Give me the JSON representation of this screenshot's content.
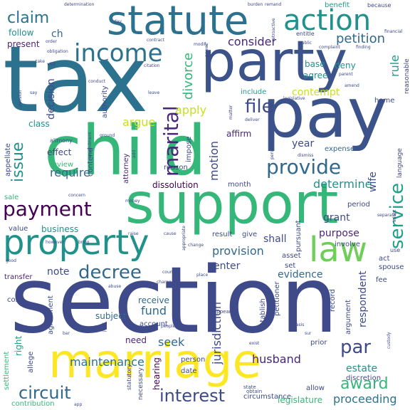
{
  "background": "#ffffff",
  "palette": {
    "purple": "#440154",
    "indigo": "#3e4a89",
    "blue": "#31688e",
    "teal": "#26828e",
    "green": "#1f9e89",
    "mint": "#35b779",
    "lime": "#6ece58",
    "yellow": "#c8e020"
  },
  "words": [
    {
      "text": "section",
      "color": "#3e4a89",
      "size": 128
    },
    {
      "text": "tax",
      "color": "#2c728e",
      "size": 128
    },
    {
      "text": "child",
      "color": "#35b779",
      "size": 96
    },
    {
      "text": "support",
      "color": "#35b779",
      "size": 78
    },
    {
      "text": "party",
      "color": "#3b528b",
      "size": 78
    },
    {
      "text": "pay",
      "color": "#3b528b",
      "size": 96
    },
    {
      "text": "statute",
      "color": "#2c728e",
      "size": 56
    },
    {
      "text": "marriage",
      "color": "#fde725",
      "size": 66
    },
    {
      "text": "property",
      "color": "#21918c",
      "size": 48
    },
    {
      "text": "law",
      "color": "#6ece58",
      "size": 48
    },
    {
      "text": "action",
      "color": "#21918c",
      "size": 40
    },
    {
      "text": "income",
      "color": "#2c728e",
      "size": 34
    },
    {
      "text": "payment",
      "color": "#440154",
      "size": 28
    },
    {
      "text": "provide",
      "color": "#31688e",
      "size": 28
    },
    {
      "text": "decree",
      "color": "#31688e",
      "size": 26
    },
    {
      "text": "issue",
      "color": "#21918c",
      "size": 22
    },
    {
      "text": "marital",
      "color": "#482677",
      "size": 28
    },
    {
      "text": "file",
      "color": "#3e4a89",
      "size": 26
    },
    {
      "text": "service",
      "color": "#1f9e89",
      "size": 26
    },
    {
      "text": "interest",
      "color": "#3e4a89",
      "size": 24
    },
    {
      "text": "circuit",
      "color": "#31688e",
      "size": 24
    },
    {
      "text": "award",
      "color": "#35b779",
      "size": 22
    },
    {
      "text": "par",
      "color": "#3e4a89",
      "size": 26
    },
    {
      "text": "claim",
      "color": "#2c728e",
      "size": 22
    },
    {
      "text": "petition",
      "color": "#31688e",
      "size": 18
    },
    {
      "text": "consider",
      "color": "#482677",
      "size": 16
    },
    {
      "text": "divorce",
      "color": "#35b779",
      "size": 18
    },
    {
      "text": "determine",
      "color": "#21918c",
      "size": 16
    },
    {
      "text": "argue",
      "color": "#c8e020",
      "size": 16
    },
    {
      "text": "apply",
      "color": "#c8e020",
      "size": 16
    },
    {
      "text": "motion",
      "color": "#3e4a89",
      "size": 16
    },
    {
      "text": "contempt",
      "color": "#c8e020",
      "size": 14
    },
    {
      "text": "rule",
      "color": "#1f9e89",
      "size": 16
    },
    {
      "text": "respondent",
      "color": "#3e4a89",
      "size": 14
    },
    {
      "text": "decision",
      "color": "#3e4a89",
      "size": 14
    },
    {
      "text": "husband",
      "color": "#482677",
      "size": 16
    },
    {
      "text": "maintenance",
      "color": "#2c728e",
      "size": 16
    },
    {
      "text": "proceeding",
      "color": "#2c728e",
      "size": 16
    },
    {
      "text": "jurisdiction",
      "color": "#3e4a89",
      "size": 16
    },
    {
      "text": "provision",
      "color": "#31688e",
      "size": 16
    },
    {
      "text": "business",
      "color": "#21918c",
      "size": 12
    },
    {
      "text": "require",
      "color": "#31688e",
      "size": 16
    },
    {
      "text": "note",
      "color": "#3e4a89",
      "size": 14
    },
    {
      "text": "seek",
      "color": "#31688e",
      "size": 16
    },
    {
      "text": "fund",
      "color": "#31688e",
      "size": 16
    },
    {
      "text": "estate",
      "color": "#21918c",
      "size": 14
    },
    {
      "text": "right",
      "color": "#1f9e89",
      "size": 12
    },
    {
      "text": "evidence",
      "color": "#31688e",
      "size": 14
    },
    {
      "text": "purpose",
      "color": "#482677",
      "size": 14
    },
    {
      "text": "grant",
      "color": "#3e4a89",
      "size": 14
    },
    {
      "text": "hearing",
      "color": "#440154",
      "size": 12
    },
    {
      "text": "legislature",
      "color": "#35b779",
      "size": 12
    },
    {
      "text": "present",
      "color": "#482677",
      "size": 12
    },
    {
      "text": "follow",
      "color": "#21918c",
      "size": 12
    },
    {
      "text": "ch",
      "color": "#31688e",
      "size": 14
    },
    {
      "text": "enter",
      "color": "#3e4a89",
      "size": 14
    },
    {
      "text": "shall",
      "color": "#3e4a89",
      "size": 14
    },
    {
      "text": "wife",
      "color": "#3e4a89",
      "size": 14
    },
    {
      "text": "year",
      "color": "#3e4a89",
      "size": 14
    },
    {
      "text": "deny",
      "color": "#21918c",
      "size": 12
    },
    {
      "text": "agree",
      "color": "#21918c",
      "size": 12
    },
    {
      "text": "base",
      "color": "#21918c",
      "size": 12
    },
    {
      "text": "include",
      "color": "#1f9e89",
      "size": 10
    },
    {
      "text": "benefit",
      "color": "#1f9e89",
      "size": 10
    },
    {
      "text": "expense",
      "color": "#31688e",
      "size": 10
    },
    {
      "text": "receive",
      "color": "#31688e",
      "size": 12
    },
    {
      "text": "subject",
      "color": "#31688e",
      "size": 12
    },
    {
      "text": "account",
      "color": "#3e4a89",
      "size": 10
    },
    {
      "text": "need",
      "color": "#482677",
      "size": 12
    },
    {
      "text": "class",
      "color": "#21918c",
      "size": 12
    },
    {
      "text": "effect",
      "color": "#3e4a89",
      "size": 12
    },
    {
      "text": "affirm",
      "color": "#482677",
      "size": 12
    },
    {
      "text": "month",
      "color": "#3e4a89",
      "size": 10
    },
    {
      "text": "dissolution",
      "color": "#440154",
      "size": 12
    },
    {
      "text": "result",
      "color": "#3e4a89",
      "size": 10
    },
    {
      "text": "attorney",
      "color": "#482677",
      "size": 10
    },
    {
      "text": "authority",
      "color": "#3e4a89",
      "size": 10
    },
    {
      "text": "contend",
      "color": "#3e4a89",
      "size": 10
    },
    {
      "text": "review",
      "color": "#35b779",
      "size": 10
    },
    {
      "text": "appellate",
      "color": "#3e4a89",
      "size": 10
    },
    {
      "text": "record",
      "color": "#3e4a89",
      "size": 10
    },
    {
      "text": "prior",
      "color": "#3e4a89",
      "size": 10
    },
    {
      "text": "allow",
      "color": "#3e4a89",
      "size": 10
    },
    {
      "text": "date",
      "color": "#3e4a89",
      "size": 10
    },
    {
      "text": "person",
      "color": "#3e4a89",
      "size": 10
    },
    {
      "text": "cost",
      "color": "#3e4a89",
      "size": 10
    },
    {
      "text": "agreement",
      "color": "#3e4a89",
      "size": 10
    },
    {
      "text": "transfer",
      "color": "#482677",
      "size": 10
    },
    {
      "text": "value",
      "color": "#3e4a89",
      "size": 10
    },
    {
      "text": "sale",
      "color": "#35b779",
      "size": 10
    },
    {
      "text": "settlement",
      "color": "#35b779",
      "size": 10
    },
    {
      "text": "contribution",
      "color": "#35b779",
      "size": 10
    },
    {
      "text": "allege",
      "color": "#3e4a89",
      "size": 10
    },
    {
      "text": "impose",
      "color": "#3e4a89",
      "size": 10
    },
    {
      "text": "reason",
      "color": "#3e4a89",
      "size": 10
    },
    {
      "text": "home",
      "color": "#3e4a89",
      "size": 10
    },
    {
      "text": "fee",
      "color": "#3e4a89",
      "size": 10
    },
    {
      "text": "act",
      "color": "#3e4a89",
      "size": 10
    },
    {
      "text": "spouse",
      "color": "#3e4a89",
      "size": 10
    },
    {
      "text": "asset",
      "color": "#3e4a89",
      "size": 10
    },
    {
      "text": "set",
      "color": "#3e4a89",
      "size": 10
    },
    {
      "text": "period",
      "color": "#3e4a89",
      "size": 10
    },
    {
      "text": "give",
      "color": "#3e4a89",
      "size": 10
    },
    {
      "text": "petitioner",
      "color": "#3e4a89",
      "size": 10
    },
    {
      "text": "establish",
      "color": "#3e4a89",
      "size": 10
    },
    {
      "text": "discretion",
      "color": "#3e4a89",
      "size": 10
    },
    {
      "text": "argument",
      "color": "#3e4a89",
      "size": 10
    },
    {
      "text": "conclude",
      "color": "#3e4a89",
      "size": 10
    },
    {
      "text": "involve",
      "color": "#3e4a89",
      "size": 10
    },
    {
      "text": "pursuant",
      "color": "#3e4a89",
      "size": 10
    },
    {
      "text": "language",
      "color": "#3e4a89",
      "size": 9
    },
    {
      "text": "reasonable",
      "color": "#3e4a89",
      "size": 9
    },
    {
      "text": "circumstance",
      "color": "#3e4a89",
      "size": 10
    },
    {
      "text": "necessary",
      "color": "#3e4a89",
      "size": 9
    },
    {
      "text": "alimony",
      "color": "#3e4a89",
      "size": 8
    },
    {
      "text": "statutory",
      "color": "#3e4a89",
      "size": 8
    },
    {
      "text": "obtain",
      "color": "#3e4a89",
      "size": 7
    },
    {
      "text": "appear",
      "color": "#3e4a89",
      "size": 7
    },
    {
      "text": "state",
      "color": "#3e4a89",
      "size": 7
    },
    {
      "text": "because",
      "color": "#3e4a89",
      "size": 8
    },
    {
      "text": "determination",
      "color": "#3e4a89",
      "size": 6
    },
    {
      "text": "burden",
      "color": "#3e4a89",
      "size": 6
    },
    {
      "text": "remand",
      "color": "#3e4a89",
      "size": 6
    },
    {
      "text": "entitle",
      "color": "#3e4a89",
      "size": 8
    },
    {
      "text": "public",
      "color": "#3e4a89",
      "size": 6
    },
    {
      "text": "complaint",
      "color": "#3e4a89",
      "size": 6
    },
    {
      "text": "finding",
      "color": "#3e4a89",
      "size": 6
    },
    {
      "text": "obligation",
      "color": "#3e4a89",
      "size": 6
    },
    {
      "text": "contract",
      "color": "#3e4a89",
      "size": 6
    },
    {
      "text": "modify",
      "color": "#3e4a89",
      "size": 6
    },
    {
      "text": "power",
      "color": "#3e4a89",
      "size": 6
    },
    {
      "text": "conduct",
      "color": "#3e4a89",
      "size": 6
    },
    {
      "text": "citation",
      "color": "#3e4a89",
      "size": 6
    },
    {
      "text": "leave",
      "color": "#3e4a89",
      "size": 6
    },
    {
      "text": "parent",
      "color": "#3e4a89",
      "size": 6
    },
    {
      "text": "amend",
      "color": "#3e4a89",
      "size": 6
    },
    {
      "text": "legislative",
      "color": "#3e4a89",
      "size": 6
    },
    {
      "text": "pension",
      "color": "#3e4a89",
      "size": 6
    },
    {
      "text": "say",
      "color": "#3e4a89",
      "size": 6
    },
    {
      "text": "matter",
      "color": "#3e4a89",
      "size": 6
    },
    {
      "text": "deliver",
      "color": "#3e4a89",
      "size": 6
    },
    {
      "text": "dismiss",
      "color": "#3e4a89",
      "size": 6
    },
    {
      "text": "personal",
      "color": "#3e4a89",
      "size": 6
    },
    {
      "text": "ground",
      "color": "#3e4a89",
      "size": 6
    },
    {
      "text": "add",
      "color": "#3e4a89",
      "size": 6
    },
    {
      "text": "change",
      "color": "#3e4a89",
      "size": 6
    },
    {
      "text": "concern",
      "color": "#3e4a89",
      "size": 6
    },
    {
      "text": "money",
      "color": "#3e4a89",
      "size": 6
    },
    {
      "text": "however",
      "color": "#3e4a89",
      "size": 6
    },
    {
      "text": "bring",
      "color": "#3e4a89",
      "size": 6
    },
    {
      "text": "raise",
      "color": "#3e4a89",
      "size": 6
    },
    {
      "text": "cause",
      "color": "#3e4a89",
      "size": 6
    },
    {
      "text": "appropriate",
      "color": "#3e4a89",
      "size": 6
    },
    {
      "text": "charge",
      "color": "#3e4a89",
      "size": 6
    },
    {
      "text": "county",
      "color": "#3e4a89",
      "size": 6
    },
    {
      "text": "place",
      "color": "#3e4a89",
      "size": 6
    },
    {
      "text": "abuse",
      "color": "#3e4a89",
      "size": 6
    },
    {
      "text": "good",
      "color": "#3e4a89",
      "size": 6
    },
    {
      "text": "separate",
      "color": "#3e4a89",
      "size": 6
    },
    {
      "text": "use",
      "color": "#3e4a89",
      "size": 8
    },
    {
      "text": "basis",
      "color": "#3e4a89",
      "size": 6
    },
    {
      "text": "sur",
      "color": "#3e4a89",
      "size": 6
    },
    {
      "text": "exist",
      "color": "#3e4a89",
      "size": 6
    },
    {
      "text": "people",
      "color": "#3e4a89",
      "size": 6
    },
    {
      "text": "joint",
      "color": "#3e4a89",
      "size": 6
    },
    {
      "text": "custody",
      "color": "#3e4a89",
      "size": 6
    },
    {
      "text": "app",
      "color": "#3e4a89",
      "size": 6
    },
    {
      "text": "day",
      "color": "#3e4a89",
      "size": 6
    },
    {
      "text": "visit",
      "color": "#3e4a89",
      "size": 6
    },
    {
      "text": "take",
      "color": "#3e4a89",
      "size": 6
    },
    {
      "text": "order",
      "color": "#3e4a89",
      "size": 6
    },
    {
      "text": "amendment",
      "color": "#3e4a89",
      "size": 6
    },
    {
      "text": "retroactive",
      "color": "#3e4a89",
      "size": 6
    },
    {
      "text": "financial",
      "color": "#3e4a89",
      "size": 6
    },
    {
      "text": "adopt",
      "color": "#3e4a89",
      "size": 6
    },
    {
      "text": "bar",
      "color": "#3e4a89",
      "size": 6
    }
  ]
}
